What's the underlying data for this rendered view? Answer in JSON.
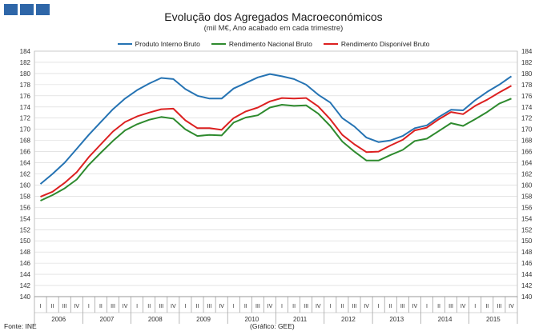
{
  "chart_data": {
    "type": "line",
    "title": "Evolução dos Agregados Macroeconómicos",
    "subtitle": "(mil M€, Ano acabado em cada trimestre)",
    "ylim": [
      140,
      184
    ],
    "yticks": [
      140,
      142,
      144,
      146,
      148,
      150,
      152,
      154,
      156,
      158,
      160,
      162,
      164,
      166,
      168,
      170,
      172,
      174,
      176,
      178,
      180,
      182,
      184
    ],
    "x": [
      "2006 I",
      "2006 II",
      "2006 III",
      "2006 IV",
      "2007 I",
      "2007 II",
      "2007 III",
      "2007 IV",
      "2008 I",
      "2008 II",
      "2008 III",
      "2008 IV",
      "2009 I",
      "2009 II",
      "2009 III",
      "2009 IV",
      "2010 I",
      "2010 II",
      "2010 III",
      "2010 IV",
      "2011 I",
      "2011 II",
      "2011 III",
      "2011 IV",
      "2012 I",
      "2012 II",
      "2012 III",
      "2012 IV",
      "2013 I",
      "2013 II",
      "2013 III",
      "2013 IV",
      "2014 I",
      "2014 II",
      "2014 III",
      "2014 IV",
      "2015 I",
      "2015 II",
      "2015 III",
      "2015 IV"
    ],
    "quarter_labels": [
      "I",
      "II",
      "III",
      "IV"
    ],
    "years": [
      "2006",
      "2007",
      "2008",
      "2009",
      "2010",
      "2011",
      "2012",
      "2013",
      "2014",
      "2015"
    ],
    "grid": true,
    "legend_position": "top",
    "series": [
      {
        "name": "Produto Interno Bruto",
        "color": "#2573b3",
        "values": [
          160.2,
          162.0,
          164.0,
          166.5,
          169.0,
          171.3,
          173.6,
          175.5,
          177.0,
          178.2,
          179.2,
          179.0,
          177.2,
          176.0,
          175.5,
          175.5,
          177.3,
          178.3,
          179.3,
          179.9,
          179.5,
          179.0,
          178.0,
          176.2,
          174.8,
          172.0,
          170.5,
          168.5,
          167.7,
          168.0,
          168.8,
          170.2,
          170.7,
          172.2,
          173.5,
          173.4,
          175.2,
          176.7,
          178.0,
          179.5
        ]
      },
      {
        "name": "Rendimento Nacional Bruto",
        "color": "#2e8a2e",
        "values": [
          157.2,
          158.2,
          159.4,
          161.0,
          163.6,
          165.8,
          167.9,
          169.8,
          170.9,
          171.7,
          172.2,
          171.9,
          170.0,
          168.8,
          169.0,
          168.9,
          171.2,
          172.1,
          172.5,
          173.9,
          174.4,
          174.2,
          174.3,
          172.8,
          170.6,
          167.8,
          166.0,
          164.4,
          164.4,
          165.4,
          166.3,
          167.9,
          168.3,
          169.7,
          171.1,
          170.6,
          171.8,
          173.1,
          174.6,
          175.5
        ]
      },
      {
        "name": "Rendimento Disponível Bruto",
        "color": "#dc2020",
        "values": [
          157.9,
          158.8,
          160.4,
          162.3,
          165.0,
          167.3,
          169.6,
          171.3,
          172.3,
          173.0,
          173.6,
          173.7,
          171.6,
          170.2,
          170.2,
          169.9,
          172.0,
          173.2,
          173.9,
          175.0,
          175.6,
          175.5,
          175.6,
          174.1,
          171.8,
          169.0,
          167.3,
          165.9,
          166.0,
          167.1,
          168.1,
          169.8,
          170.3,
          171.8,
          173.1,
          172.7,
          174.2,
          175.3,
          176.6,
          177.8
        ]
      }
    ]
  },
  "footer": {
    "source": "Fonte: INE",
    "credit": "(Gráfico: GEE)"
  },
  "colors": {
    "logo": "#2e66a8",
    "grid": "#d4d4d4"
  }
}
